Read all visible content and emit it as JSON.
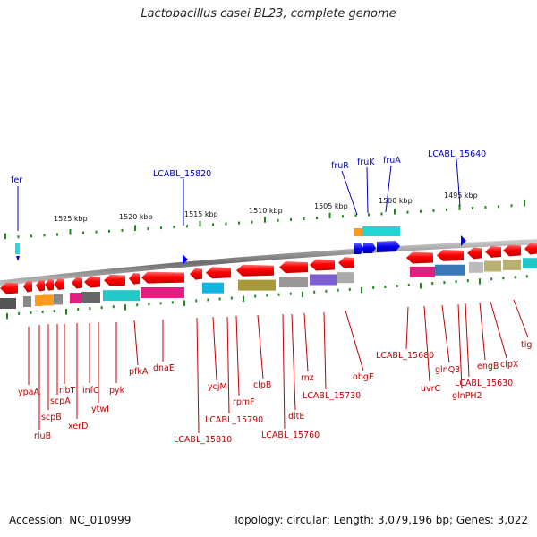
{
  "title": "Lactobacillus casei BL23, complete genome",
  "footer": {
    "accession": "Accession: NC_010999",
    "summary": "Topology: circular; Length: 3,079,196 bp; Genes: 3,022"
  },
  "colors": {
    "backbone": "#8a8a8a",
    "tick": "#1a8a1a",
    "gene_label": "#c00000",
    "upper_label": "#0000c0",
    "cds_arrow": "#ff0000",
    "feature_arrow": "#0000ee"
  },
  "scale_labels": [
    "1525 kbp",
    "1520 kbp",
    "1515 kbp",
    "1510 kbp",
    "1505 kbp",
    "1500 kbp",
    "1495 kbp"
  ],
  "upper_labels": [
    "fer",
    "LCABL_15820",
    "fruR",
    "fruK",
    "fruA",
    "LCABL_15640"
  ],
  "gene_labels": [
    "ypaA",
    "rluB",
    "scpB",
    "scpA",
    "ribT",
    "xerD",
    "infC",
    "ytwI",
    "pyk",
    "pfkA",
    "dnaE",
    "LCABL_15810",
    "ycjM",
    "LCABL_15790",
    "rpmF",
    "clpB",
    "LCABL_15760",
    "dltE",
    "rnz",
    "LCABL_15730",
    "obgE",
    "LCABL_15680",
    "uvrC",
    "glnQ3",
    "glnPH2",
    "LCABL_15630",
    "engB",
    "clpX",
    "tig"
  ]
}
